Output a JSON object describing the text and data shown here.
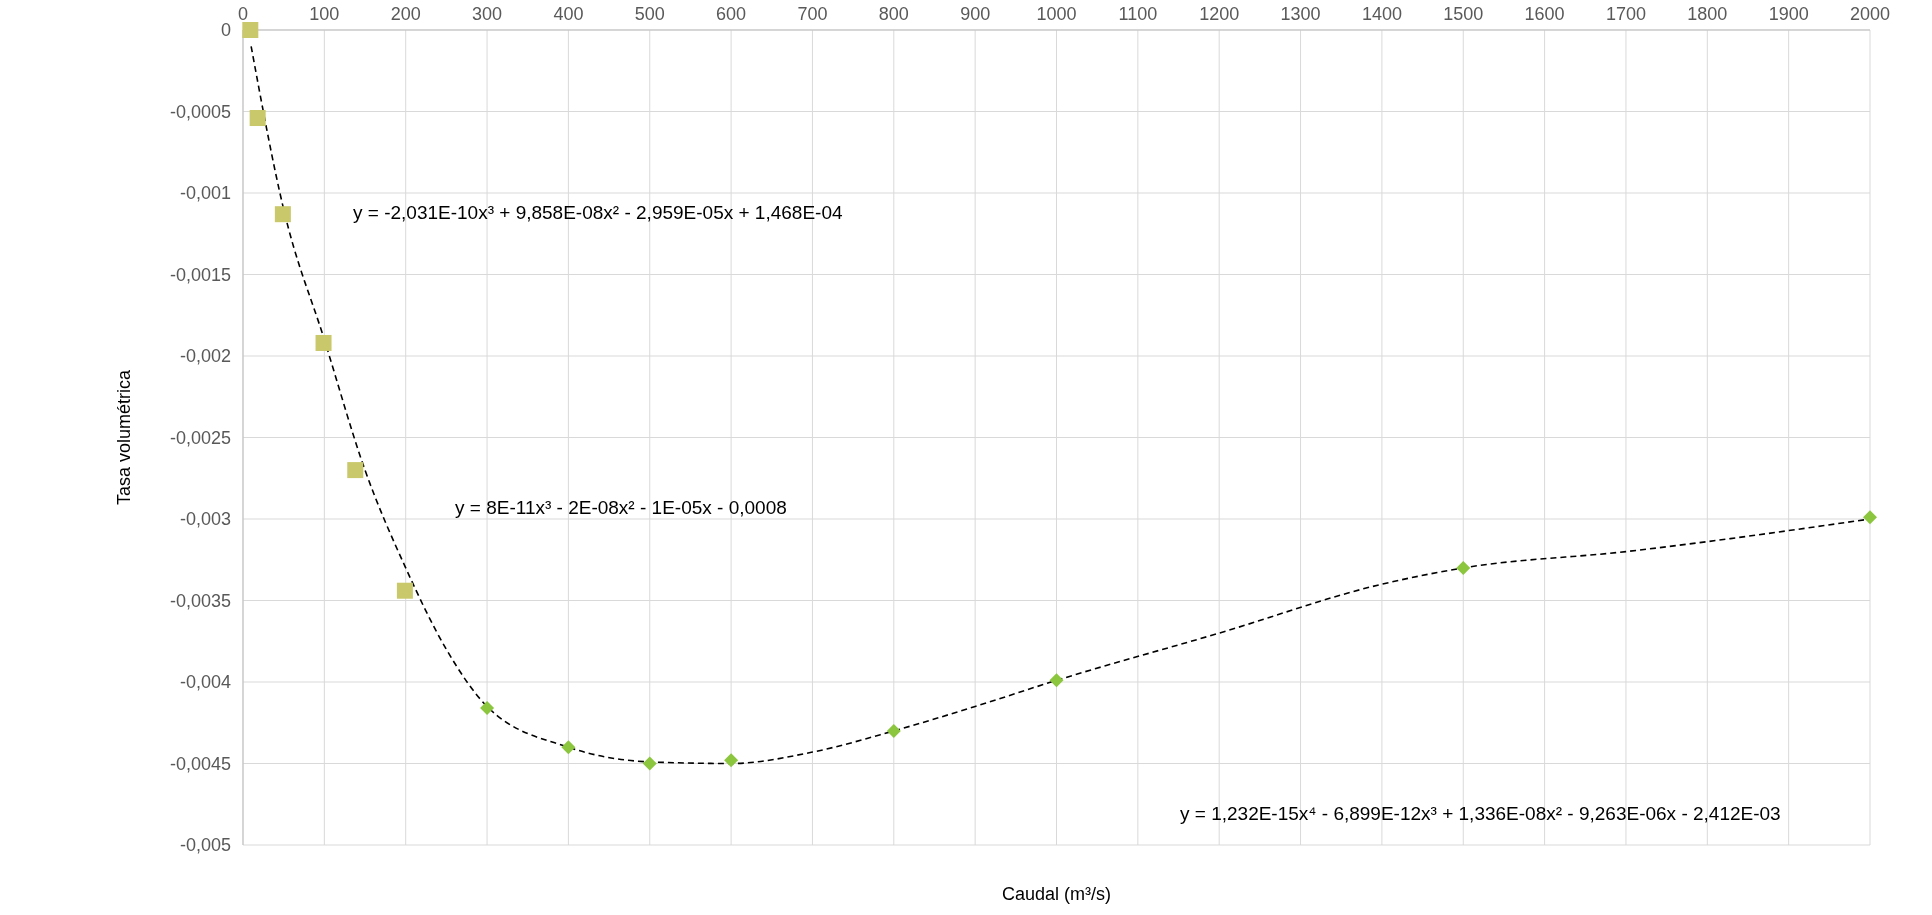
{
  "chart_data": {
    "type": "scatter",
    "xlabel": "Caudal (m³/s)",
    "ylabel": "Tasa volumétrica",
    "xlim": [
      0,
      2000
    ],
    "xticks": [
      0,
      100,
      200,
      300,
      400,
      500,
      600,
      700,
      800,
      900,
      1000,
      1100,
      1200,
      1300,
      1400,
      1500,
      1600,
      1700,
      1800,
      1900,
      2000
    ],
    "ylim": [
      -0.005,
      0
    ],
    "yticks": [
      0,
      {
        "value": -0.0005,
        "label": "-0,0005"
      },
      {
        "value": -0.001,
        "label": "-0,001"
      },
      {
        "value": -0.0015,
        "label": "-0,0015"
      },
      {
        "value": -0.002,
        "label": "-0,002"
      },
      {
        "value": -0.0025,
        "label": "-0,0025"
      },
      {
        "value": -0.003,
        "label": "-0,003"
      },
      {
        "value": -0.0035,
        "label": "-0,0035"
      },
      {
        "value": -0.004,
        "label": "-0,004"
      },
      {
        "value": -0.0045,
        "label": "-0,0045"
      },
      {
        "value": -0.005,
        "label": "-0,005"
      }
    ],
    "grid": true,
    "series": [
      {
        "type": "line",
        "color": "#000000",
        "line_style": "dashed",
        "marker": "none",
        "x": [
          10,
          50,
          100,
          150,
          200,
          250,
          300,
          400,
          500,
          600,
          700,
          800,
          900,
          1000,
          1200,
          1400,
          1500,
          1700,
          2000
        ],
        "values": [
          -0.0001,
          -0.0011,
          -0.0019,
          -0.0027,
          -0.0033,
          -0.0038,
          -0.00415,
          -0.0044,
          -0.00449,
          -0.0045,
          -0.00443,
          -0.0043,
          -0.00415,
          -0.00399,
          -0.0037,
          -0.0034,
          -0.0033,
          -0.0032,
          -0.003
        ]
      },
      {
        "color": "#c9c86a",
        "marker": "square",
        "x": [
          9,
          18,
          49,
          99,
          138,
          199
        ],
        "values": [
          0,
          -0.00054,
          -0.00113,
          -0.00192,
          -0.0027,
          -0.00344
        ]
      },
      {
        "color": "#8cc63f",
        "marker": "diamond",
        "x": [
          300,
          400,
          500,
          600,
          800,
          1000,
          1500,
          2000
        ],
        "values": [
          -0.00416,
          -0.0044,
          -0.0045,
          -0.00448,
          -0.0043,
          -0.00399,
          -0.0033,
          -0.00299
        ]
      }
    ],
    "annotations": [
      "y = -2,031E-10x³ + 9,858E-08x² - 2,959E-05x + 1,468E-04",
      "y = 8E-11x³ - 2E-08x² - 1E-05x - 0,0008",
      "y = 1,232E-15x⁴ - 6,899E-12x³ + 1,336E-08x² - 9,263E-06x - 2,412E-03"
    ]
  }
}
